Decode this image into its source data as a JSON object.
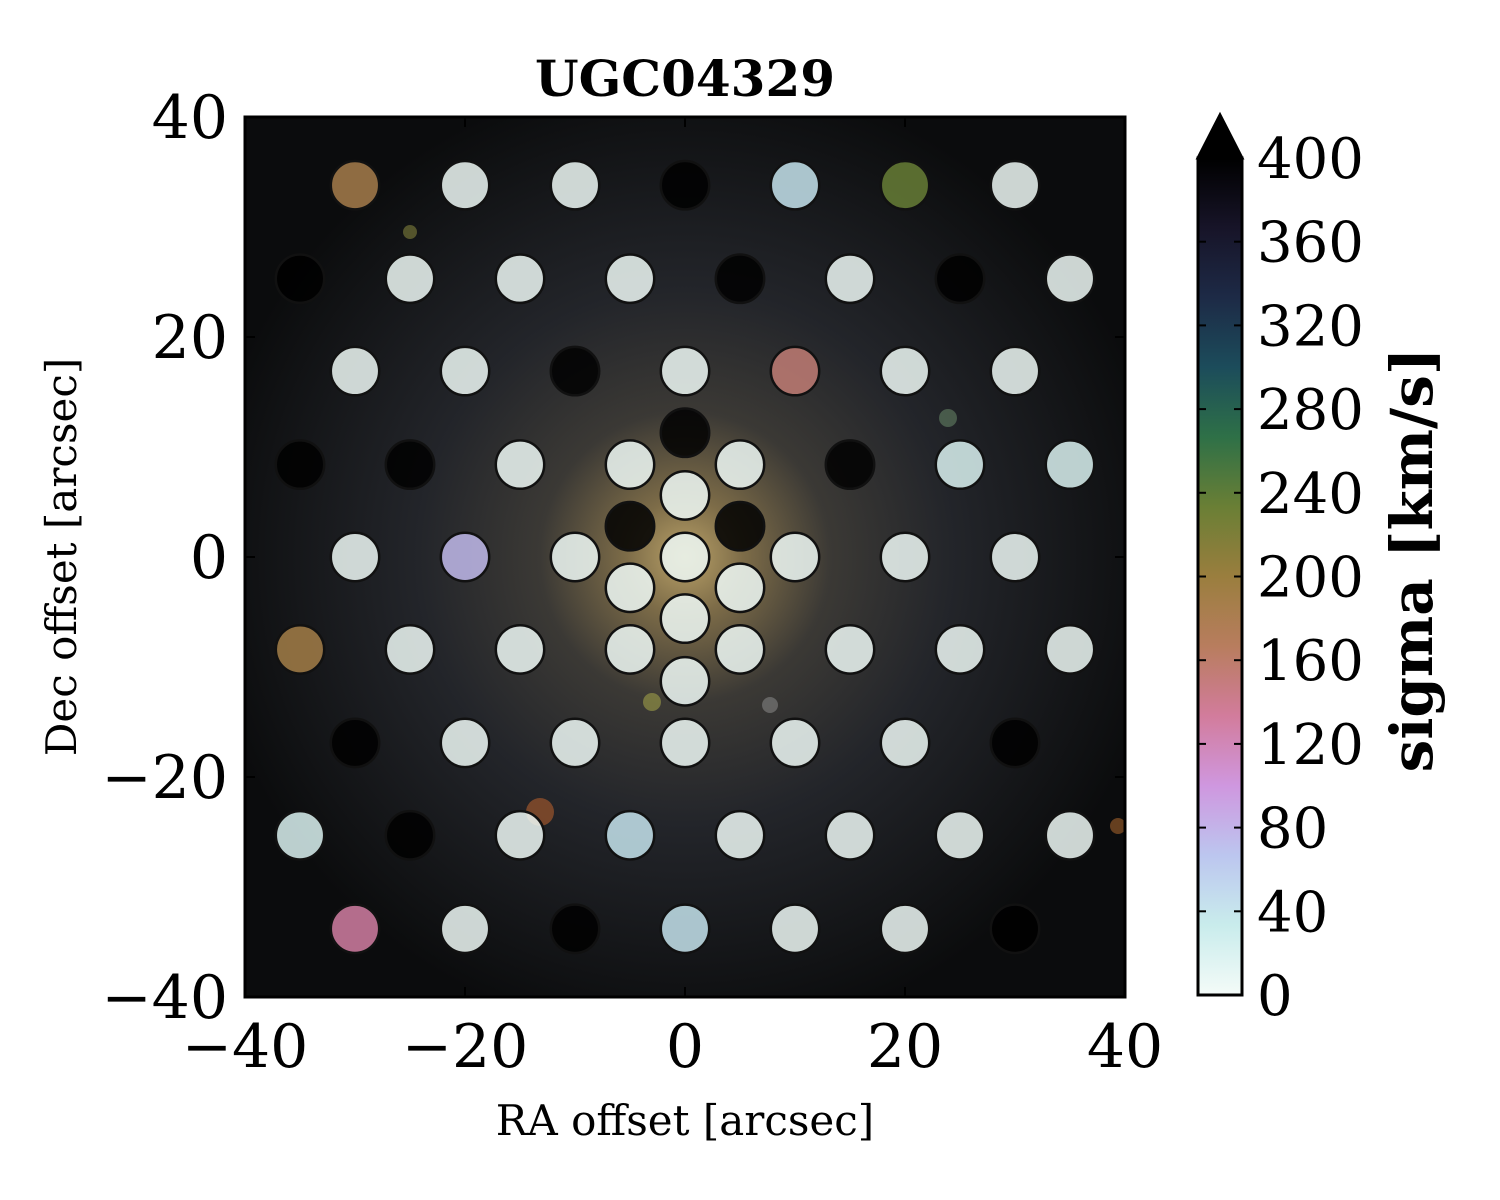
{
  "chart_data": {
    "type": "scatter",
    "title": "UGC04329",
    "xlabel": "RA offset [arcsec]",
    "ylabel": "Dec offset [arcsec]",
    "xlim": [
      -40,
      40
    ],
    "ylim": [
      -40,
      40
    ],
    "xticks": [
      "−40",
      "−20",
      "0",
      "20",
      "40"
    ],
    "yticks": [
      "−40",
      "−20",
      "0",
      "20",
      "40"
    ],
    "grid": false,
    "colorbar": {
      "label": "sigma [km/s]",
      "range": [
        0,
        400
      ],
      "extend": "max",
      "ticks": [
        "0",
        "40",
        "80",
        "120",
        "160",
        "200",
        "240",
        "280",
        "320",
        "360",
        "400"
      ],
      "colors": [
        "#f4fbf8",
        "#c9ecec",
        "#bcc6ef",
        "#cf97df",
        "#d27c9c",
        "#b87d5e",
        "#9a7e3e",
        "#6a7f35",
        "#2e7047",
        "#1c4c5b",
        "#1d2a46",
        "#171428",
        "#000000"
      ]
    },
    "fibers": [
      {
        "x": -30,
        "y": 33.8,
        "sigma": 185
      },
      {
        "x": -20,
        "y": 33.8,
        "sigma": 5
      },
      {
        "x": -10,
        "y": 33.8,
        "sigma": 5
      },
      {
        "x": 0,
        "y": 33.8,
        "sigma": 400
      },
      {
        "x": 10,
        "y": 33.8,
        "sigma": 40
      },
      {
        "x": 20,
        "y": 33.8,
        "sigma": 235
      },
      {
        "x": 30,
        "y": 33.8,
        "sigma": 5
      },
      {
        "x": -35,
        "y": 25.3,
        "sigma": 400
      },
      {
        "x": -25,
        "y": 25.3,
        "sigma": 5
      },
      {
        "x": -15,
        "y": 25.3,
        "sigma": 5
      },
      {
        "x": -5,
        "y": 25.3,
        "sigma": 5
      },
      {
        "x": 5,
        "y": 25.3,
        "sigma": 400
      },
      {
        "x": 15,
        "y": 25.3,
        "sigma": 5
      },
      {
        "x": 25,
        "y": 25.3,
        "sigma": 400
      },
      {
        "x": 35,
        "y": 25.3,
        "sigma": 5
      },
      {
        "x": -30,
        "y": 16.9,
        "sigma": 5
      },
      {
        "x": -20,
        "y": 16.9,
        "sigma": 5
      },
      {
        "x": -10,
        "y": 16.9,
        "sigma": 400
      },
      {
        "x": 0,
        "y": 16.9,
        "sigma": 5
      },
      {
        "x": 10,
        "y": 16.9,
        "sigma": 155
      },
      {
        "x": 20,
        "y": 16.9,
        "sigma": 5
      },
      {
        "x": 30,
        "y": 16.9,
        "sigma": 5
      },
      {
        "x": -35,
        "y": 8.4,
        "sigma": 400
      },
      {
        "x": -25,
        "y": 8.4,
        "sigma": 400
      },
      {
        "x": -15,
        "y": 8.4,
        "sigma": 5
      },
      {
        "x": -5,
        "y": 8.4,
        "sigma": 5
      },
      {
        "x": 0,
        "y": 11.3,
        "sigma": 400
      },
      {
        "x": 5,
        "y": 8.4,
        "sigma": 5
      },
      {
        "x": 15,
        "y": 8.4,
        "sigma": 400
      },
      {
        "x": 25,
        "y": 8.4,
        "sigma": 20
      },
      {
        "x": 35,
        "y": 8.4,
        "sigma": 20
      },
      {
        "x": 0,
        "y": 5.6,
        "sigma": 5
      },
      {
        "x": -5,
        "y": 2.8,
        "sigma": 400
      },
      {
        "x": 5,
        "y": 2.8,
        "sigma": 400
      },
      {
        "x": -30,
        "y": 0,
        "sigma": 5
      },
      {
        "x": -20,
        "y": 0,
        "sigma": 75
      },
      {
        "x": -10,
        "y": 0,
        "sigma": 5
      },
      {
        "x": 0,
        "y": 0,
        "sigma": 5
      },
      {
        "x": 10,
        "y": 0,
        "sigma": 5
      },
      {
        "x": 20,
        "y": 0,
        "sigma": 5
      },
      {
        "x": 30,
        "y": 0,
        "sigma": 5
      },
      {
        "x": -5,
        "y": -2.8,
        "sigma": 5
      },
      {
        "x": 5,
        "y": -2.8,
        "sigma": 5
      },
      {
        "x": 0,
        "y": -5.6,
        "sigma": 5
      },
      {
        "x": -35,
        "y": -8.4,
        "sigma": 190
      },
      {
        "x": -25,
        "y": -8.4,
        "sigma": 5
      },
      {
        "x": -15,
        "y": -8.4,
        "sigma": 5
      },
      {
        "x": -5,
        "y": -8.4,
        "sigma": 5
      },
      {
        "x": 5,
        "y": -8.4,
        "sigma": 5
      },
      {
        "x": 15,
        "y": -8.4,
        "sigma": 5
      },
      {
        "x": 25,
        "y": -8.4,
        "sigma": 5
      },
      {
        "x": 35,
        "y": -8.4,
        "sigma": 5
      },
      {
        "x": 0,
        "y": -11.3,
        "sigma": 5
      },
      {
        "x": -30,
        "y": -16.9,
        "sigma": 400
      },
      {
        "x": -20,
        "y": -16.9,
        "sigma": 5
      },
      {
        "x": -10,
        "y": -16.9,
        "sigma": 5
      },
      {
        "x": 0,
        "y": -16.9,
        "sigma": 5
      },
      {
        "x": 10,
        "y": -16.9,
        "sigma": 5
      },
      {
        "x": 20,
        "y": -16.9,
        "sigma": 5
      },
      {
        "x": 30,
        "y": -16.9,
        "sigma": 400
      },
      {
        "x": -35,
        "y": -25.3,
        "sigma": 20
      },
      {
        "x": -25,
        "y": -25.3,
        "sigma": 400
      },
      {
        "x": -15,
        "y": -25.3,
        "sigma": 5
      },
      {
        "x": -5,
        "y": -25.3,
        "sigma": 40
      },
      {
        "x": 5,
        "y": -25.3,
        "sigma": 5
      },
      {
        "x": 15,
        "y": -25.3,
        "sigma": 5
      },
      {
        "x": 25,
        "y": -25.3,
        "sigma": 5
      },
      {
        "x": 35,
        "y": -25.3,
        "sigma": 5
      },
      {
        "x": -30,
        "y": -33.8,
        "sigma": 130
      },
      {
        "x": -20,
        "y": -33.8,
        "sigma": 5
      },
      {
        "x": -10,
        "y": -33.8,
        "sigma": 400
      },
      {
        "x": 0,
        "y": -33.8,
        "sigma": 40
      },
      {
        "x": 10,
        "y": -33.8,
        "sigma": 5
      },
      {
        "x": 20,
        "y": -33.8,
        "sigma": 5
      },
      {
        "x": 30,
        "y": -33.8,
        "sigma": 400
      }
    ]
  }
}
